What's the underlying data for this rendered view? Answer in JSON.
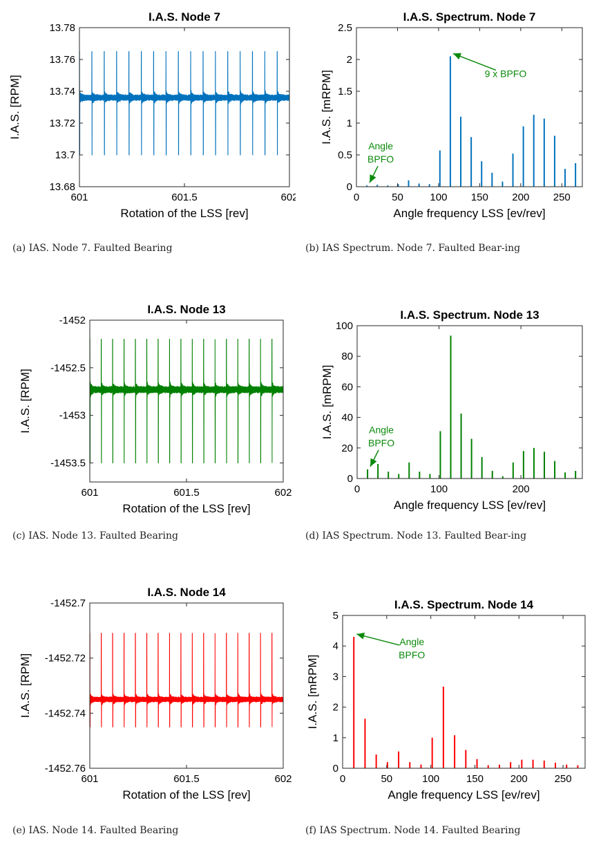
{
  "chart_data": [
    {
      "id": "a",
      "type": "line",
      "title": "I.A.S. Node 7",
      "xlabel": "Rotation of the LSS [rev]",
      "ylabel": "I.A.S. [RPM]",
      "xlim": [
        601,
        602
      ],
      "ylim": [
        13.68,
        13.78
      ],
      "xticks": [
        "601",
        "601.5",
        "602"
      ],
      "yticks": [
        "13.68",
        "13.7",
        "13.72",
        "13.74",
        "13.76",
        "13.78"
      ],
      "color": "#0072bd",
      "signal": {
        "baseline": 13.736,
        "spike_high": 13.765,
        "spike_low": 13.7,
        "noise_band": 0.012,
        "impacts_per_rev": 17
      },
      "caption": "(a) IAS. Node 7. Faulted Bearing"
    },
    {
      "id": "b",
      "type": "bar",
      "title": "I.A.S. Spectrum. Node 7",
      "xlabel": "Angle frequency LSS [ev/rev]",
      "ylabel": "I.A.S. [mRPM]",
      "xlim": [
        0,
        275
      ],
      "ylim": [
        0,
        2.5
      ],
      "xticks": [
        "0",
        "50",
        "100",
        "150",
        "200",
        "250"
      ],
      "yticks": [
        "0",
        "0.5",
        "1",
        "1.5",
        "2",
        "2.5"
      ],
      "color": "#0072bd",
      "x": [
        12.7,
        25.4,
        38.1,
        50.8,
        63.5,
        76.2,
        88.9,
        101.6,
        114.3,
        127,
        139.7,
        152.4,
        165.1,
        177.8,
        190.5,
        203.2,
        215.9,
        228.6,
        241.3,
        254,
        266.7
      ],
      "values": [
        0.02,
        0.03,
        0.02,
        0.04,
        0.1,
        0.05,
        0.04,
        0.57,
        2.05,
        1.1,
        0.78,
        0.4,
        0.22,
        0.08,
        0.52,
        0.95,
        1.13,
        1.07,
        0.8,
        0.28,
        0.37
      ],
      "annotations": [
        {
          "text_lines": [
            "9 x BPFO"
          ],
          "x": 114.3,
          "y": 2.05
        },
        {
          "text_lines": [
            "Angle",
            "BPFO"
          ],
          "x": 12.7,
          "y": 0.02
        }
      ],
      "caption": "(b) IAS Spectrum. Node 7. Faulted Bear-ing"
    },
    {
      "id": "c",
      "type": "line",
      "title": "I.A.S. Node 13",
      "xlabel": "Rotation of the LSS [rev]",
      "ylabel": "I.A.S. [RPM]",
      "xlim": [
        601,
        602
      ],
      "ylim": [
        -1453.7,
        -1452
      ],
      "xticks": [
        "601",
        "601.5",
        "602"
      ],
      "yticks": [
        "-1452",
        "-1452.5",
        "-1453",
        "-1453.5"
      ],
      "color": "#008000",
      "signal": {
        "baseline": -1452.73,
        "spike_high": -1452.2,
        "spike_low": -1453.5,
        "noise_band": 0.22,
        "impacts_per_rev": 17
      },
      "caption": "(c) IAS. Node 13. Faulted Bearing"
    },
    {
      "id": "d",
      "type": "bar",
      "title": "I.A.S. Spectrum. Node 13",
      "xlabel": "Angle frequency LSS [ev/rev]",
      "ylabel": "I.A.S. [mRPM]",
      "xlim": [
        0,
        275
      ],
      "ylim": [
        0,
        100
      ],
      "xticks": [
        "0",
        "100",
        "200"
      ],
      "yticks": [
        "0",
        "20",
        "40",
        "60",
        "80",
        "100"
      ],
      "color": "#008000",
      "x": [
        12.7,
        25.4,
        38.1,
        50.8,
        63.5,
        76.2,
        88.9,
        101.6,
        114.3,
        127,
        139.7,
        152.4,
        165.1,
        177.8,
        190.5,
        203.2,
        215.9,
        228.6,
        241.3,
        254,
        266.7
      ],
      "values": [
        6,
        9.5,
        4.5,
        3,
        10.5,
        4.5,
        3,
        31,
        93.5,
        42.5,
        26,
        14,
        5,
        1.5,
        10.5,
        18,
        20,
        17.5,
        11.5,
        4,
        5
      ],
      "annotations": [
        {
          "text_lines": [
            "Angle",
            "BPFO"
          ],
          "x": 12.7,
          "y": 6
        }
      ],
      "caption": "(d) IAS Spectrum. Node 13. Faulted Bear-ing"
    },
    {
      "id": "e",
      "type": "line",
      "title": "I.A.S. Node 14",
      "xlabel": "Rotation of the LSS [rev]",
      "ylabel": "I.A.S. [RPM]",
      "xlim": [
        601,
        602
      ],
      "ylim": [
        -1452.76,
        -1452.7
      ],
      "xticks": [
        "601",
        "601.5",
        "602"
      ],
      "yticks": [
        "-1452.7",
        "-1452.72",
        "-1452.74",
        "-1452.76"
      ],
      "color": "#ff0000",
      "signal": {
        "baseline": -1452.735,
        "spike_high": -1452.711,
        "spike_low": -1452.745,
        "noise_band": 0.006,
        "impacts_per_rev": 17
      },
      "caption": "(e) IAS. Node 14. Faulted Bearing"
    },
    {
      "id": "f",
      "type": "bar",
      "title": "I.A.S. Spectrum. Node 14",
      "xlabel": "Angle frequency LSS [ev/rev]",
      "ylabel": "I.A.S. [mRPM]",
      "xlim": [
        0,
        275
      ],
      "ylim": [
        0,
        5
      ],
      "xticks": [
        "0",
        "50",
        "100",
        "150",
        "200",
        "250"
      ],
      "yticks": [
        "0",
        "1",
        "2",
        "3",
        "4",
        "5"
      ],
      "color": "#ff0000",
      "x": [
        12.7,
        25.4,
        38.1,
        50.8,
        63.5,
        76.2,
        88.9,
        101.6,
        114.3,
        127,
        139.7,
        152.4,
        165.1,
        177.8,
        190.5,
        203.2,
        215.9,
        228.6,
        241.3,
        254,
        266.7
      ],
      "values": [
        4.3,
        1.62,
        0.45,
        0.2,
        0.55,
        0.2,
        0.12,
        1.0,
        2.67,
        1.08,
        0.6,
        0.3,
        0.1,
        0.12,
        0.2,
        0.28,
        0.28,
        0.25,
        0.18,
        0.12,
        0.1
      ],
      "annotations": [
        {
          "text_lines": [
            "Angle",
            "BPFO"
          ],
          "x": 12.7,
          "y": 4.3
        }
      ],
      "caption": "(f) IAS Spectrum. Node 14. Faulted Bearing"
    }
  ]
}
